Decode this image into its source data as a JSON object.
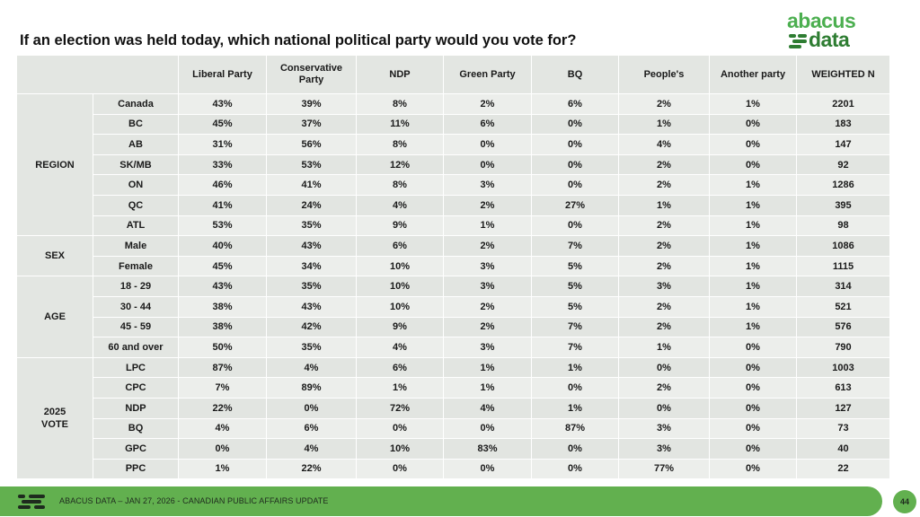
{
  "title": "If an election was held today, which national political party would you vote for?",
  "logo": {
    "top": "abacus",
    "bottom": "data"
  },
  "columns": [
    "Liberal Party",
    "Conservative Party",
    "NDP",
    "Green Party",
    "BQ",
    "People's",
    "Another party",
    "WEIGHTED N"
  ],
  "groups": [
    {
      "label": "REGION",
      "rows": [
        {
          "label": "Canada",
          "values": [
            "43%",
            "39%",
            "8%",
            "2%",
            "6%",
            "2%",
            "1%",
            "2201"
          ]
        },
        {
          "label": "BC",
          "values": [
            "45%",
            "37%",
            "11%",
            "6%",
            "0%",
            "1%",
            "0%",
            "183"
          ]
        },
        {
          "label": "AB",
          "values": [
            "31%",
            "56%",
            "8%",
            "0%",
            "0%",
            "4%",
            "0%",
            "147"
          ]
        },
        {
          "label": "SK/MB",
          "values": [
            "33%",
            "53%",
            "12%",
            "0%",
            "0%",
            "2%",
            "0%",
            "92"
          ]
        },
        {
          "label": "ON",
          "values": [
            "46%",
            "41%",
            "8%",
            "3%",
            "0%",
            "2%",
            "1%",
            "1286"
          ]
        },
        {
          "label": "QC",
          "values": [
            "41%",
            "24%",
            "4%",
            "2%",
            "27%",
            "1%",
            "1%",
            "395"
          ]
        },
        {
          "label": "ATL",
          "values": [
            "53%",
            "35%",
            "9%",
            "1%",
            "0%",
            "2%",
            "1%",
            "98"
          ]
        }
      ]
    },
    {
      "label": "SEX",
      "rows": [
        {
          "label": "Male",
          "values": [
            "40%",
            "43%",
            "6%",
            "2%",
            "7%",
            "2%",
            "1%",
            "1086"
          ]
        },
        {
          "label": "Female",
          "values": [
            "45%",
            "34%",
            "10%",
            "3%",
            "5%",
            "2%",
            "1%",
            "1115"
          ]
        }
      ]
    },
    {
      "label": "AGE",
      "rows": [
        {
          "label": "18 - 29",
          "values": [
            "43%",
            "35%",
            "10%",
            "3%",
            "5%",
            "3%",
            "1%",
            "314"
          ]
        },
        {
          "label": "30 - 44",
          "values": [
            "38%",
            "43%",
            "10%",
            "2%",
            "5%",
            "2%",
            "1%",
            "521"
          ]
        },
        {
          "label": "45 - 59",
          "values": [
            "38%",
            "42%",
            "9%",
            "2%",
            "7%",
            "2%",
            "1%",
            "576"
          ]
        },
        {
          "label": "60 and over",
          "values": [
            "50%",
            "35%",
            "4%",
            "3%",
            "7%",
            "1%",
            "0%",
            "790"
          ]
        }
      ]
    },
    {
      "label": "2025 VOTE",
      "rows": [
        {
          "label": "LPC",
          "values": [
            "87%",
            "4%",
            "6%",
            "1%",
            "1%",
            "0%",
            "0%",
            "1003"
          ]
        },
        {
          "label": "CPC",
          "values": [
            "7%",
            "89%",
            "1%",
            "1%",
            "0%",
            "2%",
            "0%",
            "613"
          ]
        },
        {
          "label": "NDP",
          "values": [
            "22%",
            "0%",
            "72%",
            "4%",
            "1%",
            "0%",
            "0%",
            "127"
          ]
        },
        {
          "label": "BQ",
          "values": [
            "4%",
            "6%",
            "0%",
            "0%",
            "87%",
            "3%",
            "0%",
            "73"
          ]
        },
        {
          "label": "GPC",
          "values": [
            "0%",
            "4%",
            "10%",
            "83%",
            "0%",
            "3%",
            "0%",
            "40"
          ]
        },
        {
          "label": "PPC",
          "values": [
            "1%",
            "22%",
            "0%",
            "0%",
            "0%",
            "77%",
            "0%",
            "22"
          ]
        }
      ]
    }
  ],
  "footer": {
    "text": "ABACUS DATA – JAN 27, 2026 - CANADIAN PUBLIC AFFAIRS UPDATE",
    "page": "44"
  },
  "colors": {
    "brand_green": "#62b04f",
    "logo_light": "#4caf50",
    "logo_dark": "#2e7d32",
    "table_bg": "#e3e6e2"
  }
}
